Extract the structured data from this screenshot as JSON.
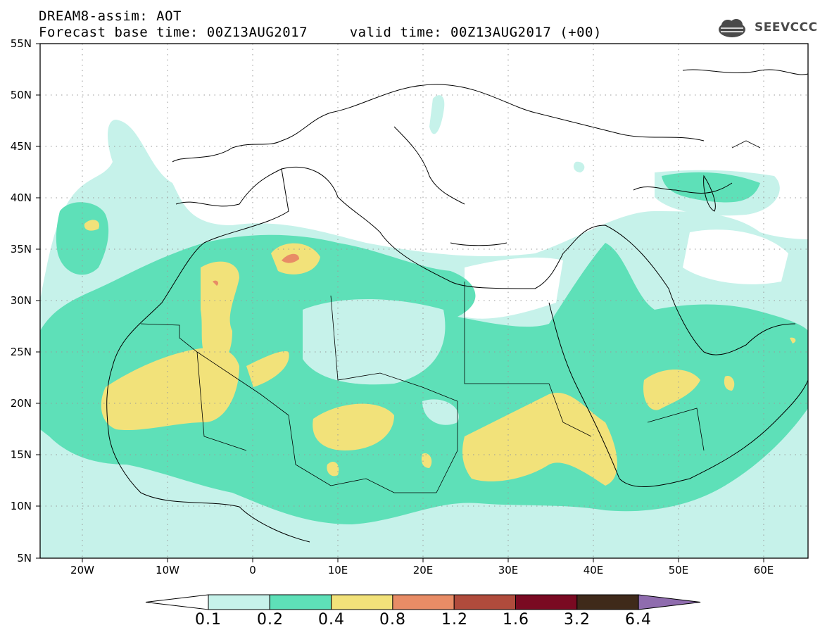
{
  "header": {
    "title_line1": "DREAM8-assim: AOT",
    "title_line2": "Forecast base time: 00Z13AUG2017     valid time: 00Z13AUG2017 (+00)",
    "logo_text": "SEEVCCC"
  },
  "map": {
    "lat_labels": [
      "55N",
      "50N",
      "45N",
      "40N",
      "35N",
      "30N",
      "25N",
      "20N",
      "15N",
      "10N",
      "5N"
    ],
    "lon_labels": [
      "20W",
      "10W",
      "0",
      "10E",
      "20E",
      "30E",
      "40E",
      "50E",
      "60E"
    ],
    "lat_range": [
      5,
      55
    ],
    "lon_range": [
      -25,
      65
    ],
    "grid": "dotted",
    "field": "AOT"
  },
  "legend": {
    "levels": [
      "0.1",
      "0.2",
      "0.4",
      "0.8",
      "1.2",
      "1.6",
      "3.2",
      "6.4"
    ],
    "colors": [
      "#ffffff",
      "#c6f2ea",
      "#5ee0b8",
      "#f2e27a",
      "#e88c66",
      "#b04b3c",
      "#7a0a22",
      "#3f2a1a",
      "#8f6cae"
    ]
  }
}
